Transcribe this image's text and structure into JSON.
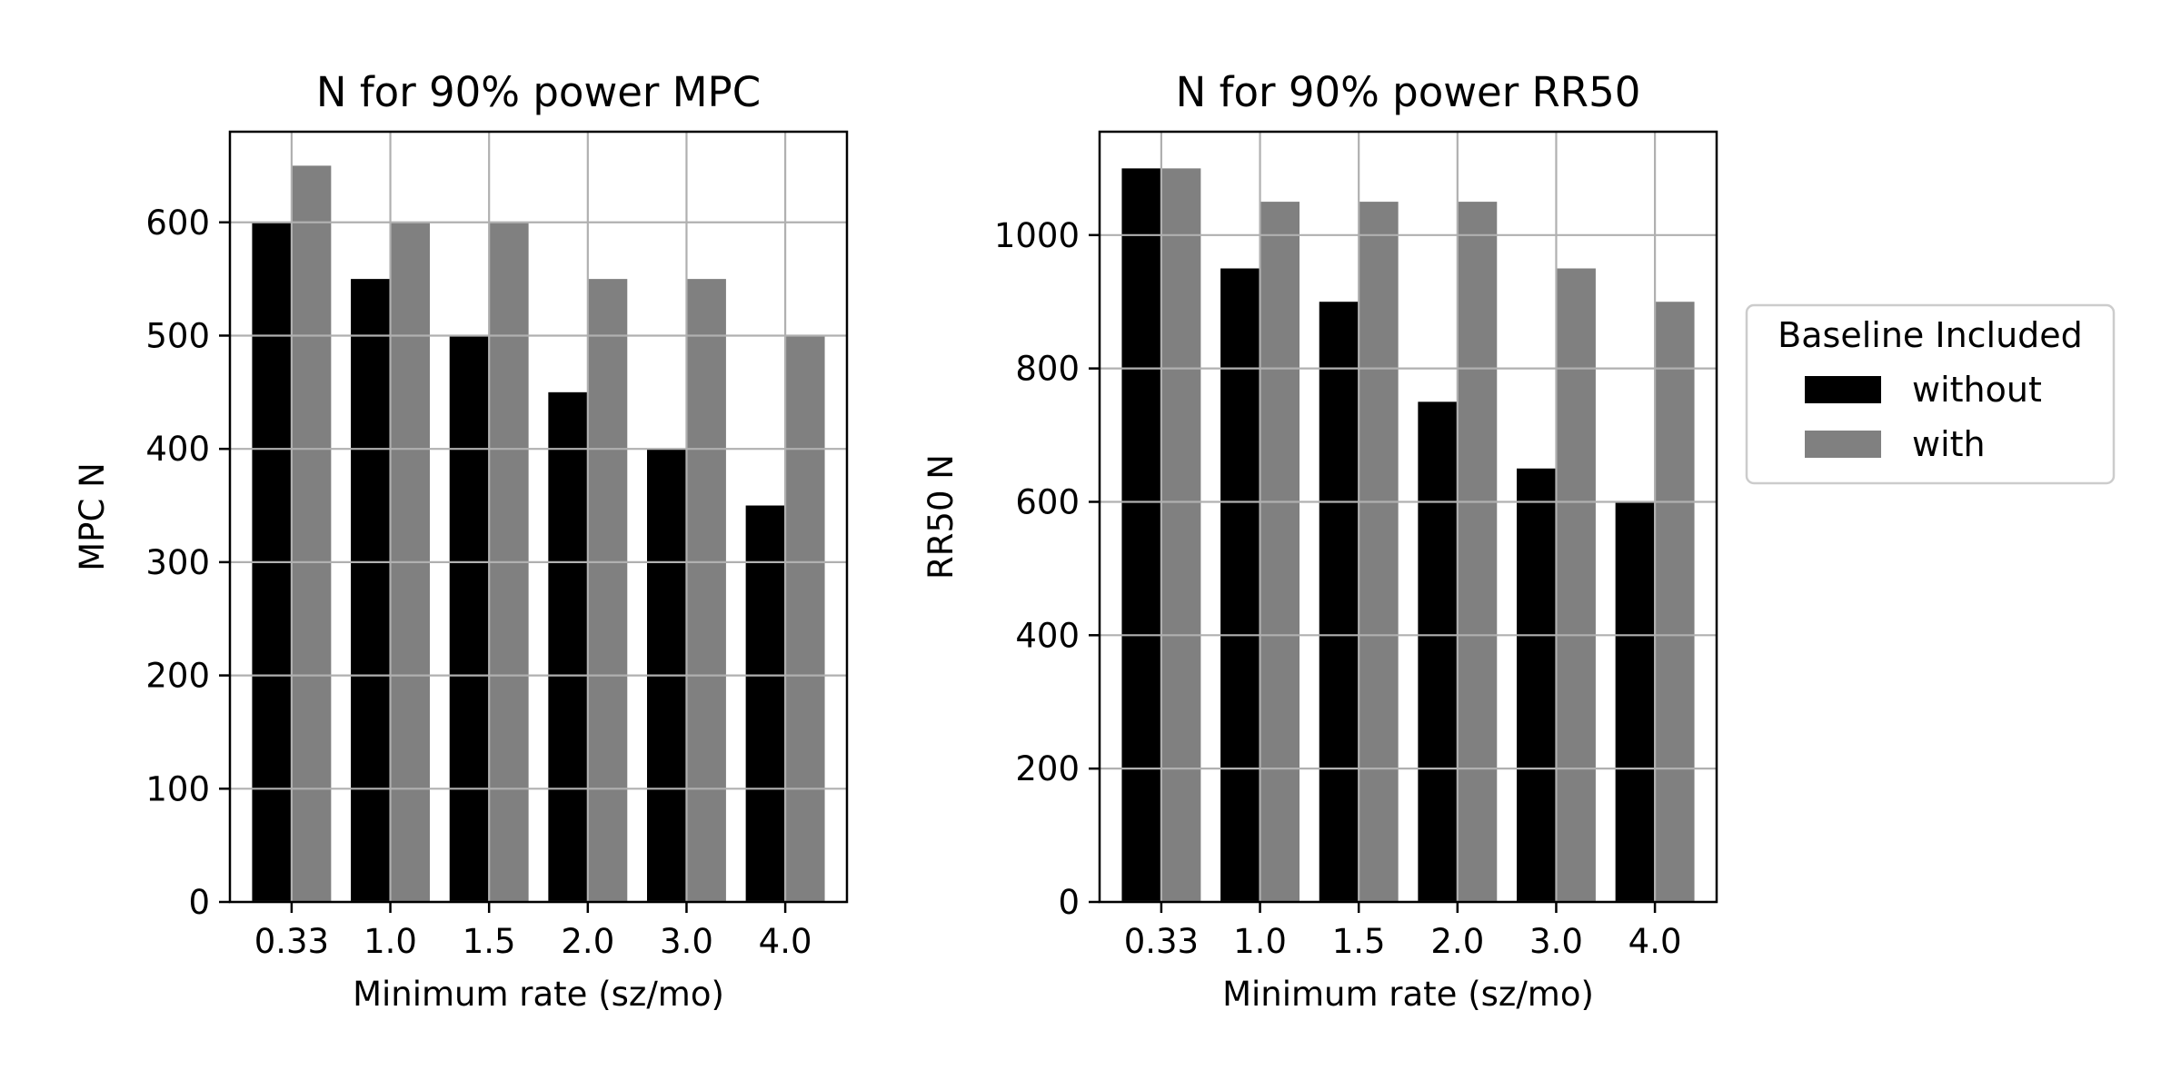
{
  "chart_data": [
    {
      "type": "bar",
      "title": "N for 90% power MPC",
      "xlabel": "Minimum rate (sz/mo)",
      "ylabel": "MPC N",
      "categories": [
        "0.33",
        "1.0",
        "1.5",
        "2.0",
        "3.0",
        "4.0"
      ],
      "ylim": [
        0,
        680
      ],
      "yticks": [
        0,
        100,
        200,
        300,
        400,
        500,
        600
      ],
      "grid": true,
      "series": [
        {
          "name": "without",
          "color": "#000000",
          "values": [
            600,
            550,
            500,
            450,
            400,
            350
          ]
        },
        {
          "name": "with",
          "color": "#808080",
          "values": [
            650,
            600,
            600,
            550,
            550,
            500
          ]
        }
      ]
    },
    {
      "type": "bar",
      "title": "N for 90% power RR50",
      "xlabel": "Minimum rate (sz/mo)",
      "ylabel": "RR50 N",
      "categories": [
        "0.33",
        "1.0",
        "1.5",
        "2.0",
        "3.0",
        "4.0"
      ],
      "ylim": [
        0,
        1155
      ],
      "yticks": [
        0,
        200,
        400,
        600,
        800,
        1000
      ],
      "grid": true,
      "series": [
        {
          "name": "without",
          "color": "#000000",
          "values": [
            1100,
            950,
            900,
            750,
            650,
            600
          ]
        },
        {
          "name": "with",
          "color": "#808080",
          "values": [
            1100,
            1050,
            1050,
            1050,
            950,
            900
          ]
        }
      ]
    }
  ],
  "legend": {
    "title": "Baseline Included",
    "placement": "right",
    "entries": [
      {
        "label": "without",
        "color": "#000000"
      },
      {
        "label": "with",
        "color": "#808080"
      }
    ]
  }
}
